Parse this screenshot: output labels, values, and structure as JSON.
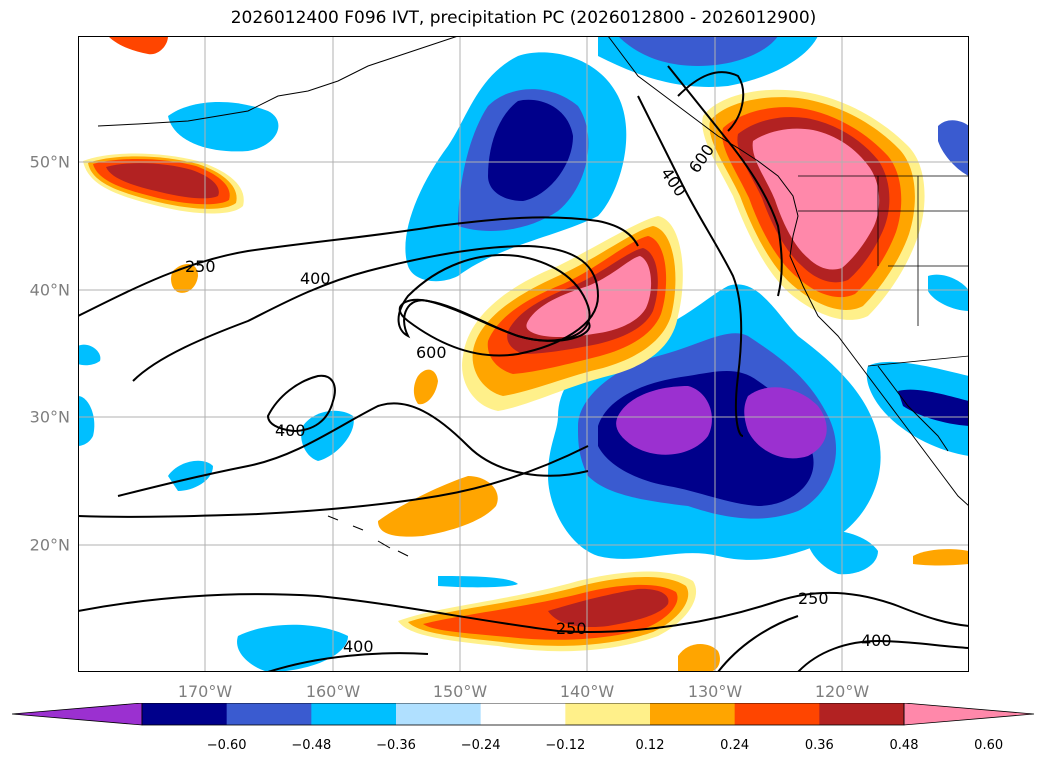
{
  "title": "2026012400 F096 IVT, precipitation PC (2026012800 - 2026012900)",
  "lat_labels": [
    "50°N",
    "40°N",
    "30°N",
    "20°N"
  ],
  "lon_labels": [
    "170°W",
    "160°W",
    "150°W",
    "140°W",
    "130°W",
    "120°W"
  ],
  "colorbar": {
    "ticks": [
      "−0.60",
      "−0.48",
      "−0.36",
      "−0.24",
      "−0.12",
      "0.12",
      "0.24",
      "0.36",
      "0.48",
      "0.60"
    ],
    "colors": [
      "#9b30d0",
      "#00008b",
      "#3a5bd0",
      "#00bfff",
      "#b0e0ff",
      "#ffffff",
      "#fff08a",
      "#ffa500",
      "#ff4500",
      "#b22222",
      "#ff88aa"
    ]
  },
  "contour_labels": [
    "250",
    "400",
    "600",
    "400",
    "400",
    "600",
    "250",
    "250",
    "400",
    "400"
  ],
  "fill_colors": {
    "neg_high": "#9b30d0",
    "neg_2": "#00008b",
    "neg_3": "#3a5bd0",
    "neg_4": "#00bfff",
    "neg_5": "#b0e0ff",
    "pos_1": "#fff08a",
    "pos_2": "#ffa500",
    "pos_3": "#ff4500",
    "pos_4": "#b22222",
    "pos_5": "#ff88aa",
    "grid": "#b0b0b0",
    "coast": "#000000"
  }
}
